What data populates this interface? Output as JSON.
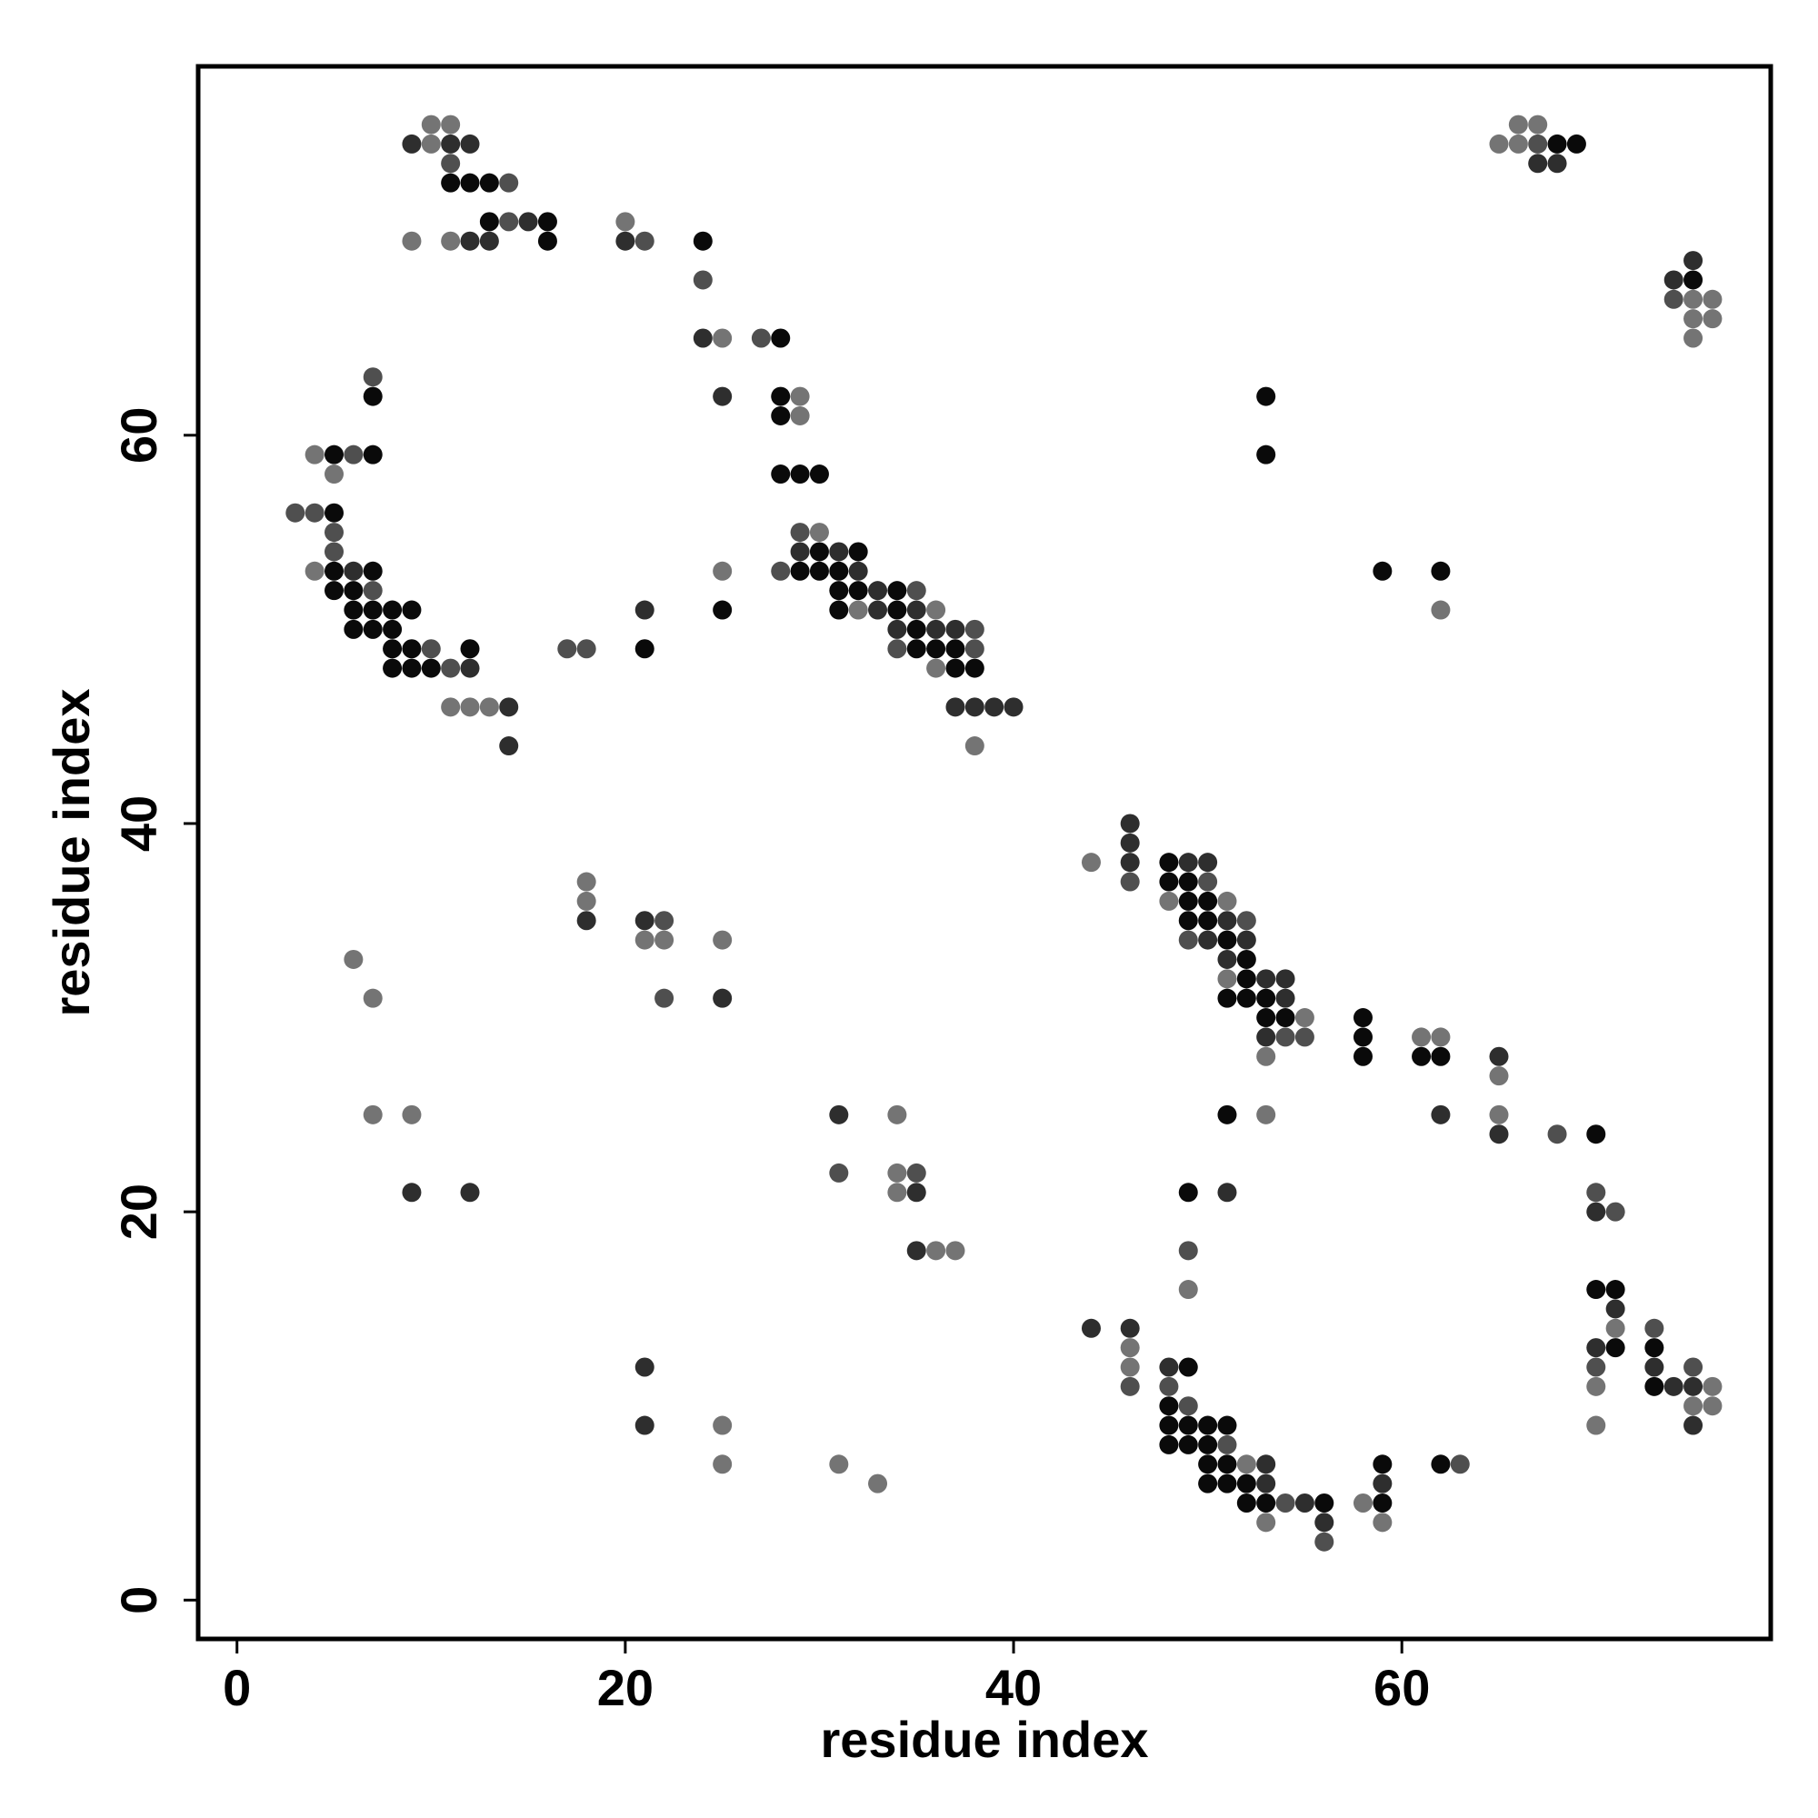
{
  "chart_data": {
    "type": "scatter",
    "title": "",
    "xlabel": "residue index",
    "ylabel": "residue index",
    "xlim": [
      -2,
      79
    ],
    "ylim": [
      -2,
      79
    ],
    "x_ticks": [
      0,
      20,
      40,
      60
    ],
    "y_ticks": [
      0,
      20,
      40,
      60
    ],
    "grid": false,
    "legend": "none",
    "shades": {
      "1": "#0a0a0a",
      "2": "#2e2e2e",
      "3": "#4f4f4f",
      "4": "#747474"
    },
    "points": [
      [
        3,
        56,
        3
      ],
      [
        4,
        56,
        3
      ],
      [
        4,
        59,
        4
      ],
      [
        4,
        53,
        4
      ],
      [
        5,
        59,
        1
      ],
      [
        5,
        58,
        4
      ],
      [
        5,
        56,
        1
      ],
      [
        5,
        55,
        3
      ],
      [
        5,
        54,
        3
      ],
      [
        5,
        53,
        1
      ],
      [
        5,
        52,
        1
      ],
      [
        6,
        59,
        3
      ],
      [
        6,
        53,
        2
      ],
      [
        6,
        52,
        1
      ],
      [
        6,
        51,
        1
      ],
      [
        6,
        50,
        1
      ],
      [
        6,
        33,
        4
      ],
      [
        7,
        63,
        3
      ],
      [
        7,
        62,
        1
      ],
      [
        7,
        59,
        1
      ],
      [
        7,
        53,
        1
      ],
      [
        7,
        52,
        3
      ],
      [
        7,
        51,
        1
      ],
      [
        7,
        50,
        1
      ],
      [
        7,
        31,
        4
      ],
      [
        7,
        25,
        4
      ],
      [
        8,
        51,
        1
      ],
      [
        8,
        50,
        1
      ],
      [
        8,
        49,
        1
      ],
      [
        8,
        48,
        1
      ],
      [
        9,
        75,
        2
      ],
      [
        9,
        70,
        4
      ],
      [
        9,
        51,
        1
      ],
      [
        9,
        49,
        1
      ],
      [
        9,
        48,
        1
      ],
      [
        9,
        25,
        4
      ],
      [
        9,
        21,
        2
      ],
      [
        10,
        76,
        4
      ],
      [
        10,
        75,
        4
      ],
      [
        10,
        49,
        3
      ],
      [
        10,
        48,
        1
      ],
      [
        11,
        76,
        4
      ],
      [
        11,
        75,
        2
      ],
      [
        11,
        74,
        3
      ],
      [
        11,
        73,
        1
      ],
      [
        11,
        70,
        4
      ],
      [
        11,
        48,
        3
      ],
      [
        11,
        46,
        4
      ],
      [
        12,
        75,
        2
      ],
      [
        12,
        73,
        1
      ],
      [
        12,
        70,
        2
      ],
      [
        12,
        49,
        1
      ],
      [
        12,
        48,
        2
      ],
      [
        12,
        46,
        4
      ],
      [
        12,
        21,
        2
      ],
      [
        13,
        73,
        1
      ],
      [
        13,
        71,
        1
      ],
      [
        13,
        70,
        2
      ],
      [
        13,
        46,
        4
      ],
      [
        14,
        73,
        3
      ],
      [
        14,
        71,
        3
      ],
      [
        14,
        46,
        2
      ],
      [
        14,
        44,
        2
      ],
      [
        15,
        71,
        2
      ],
      [
        16,
        71,
        1
      ],
      [
        16,
        70,
        1
      ],
      [
        17,
        49,
        3
      ],
      [
        18,
        49,
        3
      ],
      [
        18,
        37,
        4
      ],
      [
        18,
        36,
        4
      ],
      [
        18,
        35,
        2
      ],
      [
        20,
        71,
        4
      ],
      [
        20,
        70,
        2
      ],
      [
        21,
        70,
        3
      ],
      [
        21,
        51,
        2
      ],
      [
        21,
        49,
        1
      ],
      [
        21,
        35,
        2
      ],
      [
        21,
        34,
        4
      ],
      [
        21,
        12,
        2
      ],
      [
        21,
        9,
        2
      ],
      [
        22,
        35,
        3
      ],
      [
        22,
        34,
        4
      ],
      [
        22,
        31,
        3
      ],
      [
        24,
        70,
        1
      ],
      [
        24,
        68,
        3
      ],
      [
        24,
        65,
        2
      ],
      [
        25,
        65,
        4
      ],
      [
        25,
        62,
        2
      ],
      [
        25,
        53,
        4
      ],
      [
        25,
        51,
        1
      ],
      [
        25,
        34,
        4
      ],
      [
        25,
        31,
        2
      ],
      [
        25,
        9,
        4
      ],
      [
        25,
        7,
        4
      ],
      [
        27,
        65,
        3
      ],
      [
        28,
        65,
        1
      ],
      [
        28,
        62,
        1
      ],
      [
        28,
        61,
        1
      ],
      [
        28,
        58,
        1
      ],
      [
        28,
        53,
        3
      ],
      [
        29,
        62,
        4
      ],
      [
        29,
        61,
        4
      ],
      [
        29,
        58,
        1
      ],
      [
        29,
        55,
        3
      ],
      [
        29,
        54,
        2
      ],
      [
        29,
        53,
        1
      ],
      [
        30,
        58,
        1
      ],
      [
        30,
        55,
        4
      ],
      [
        30,
        54,
        1
      ],
      [
        30,
        53,
        1
      ],
      [
        31,
        54,
        2
      ],
      [
        31,
        53,
        1
      ],
      [
        31,
        52,
        1
      ],
      [
        31,
        51,
        1
      ],
      [
        31,
        25,
        2
      ],
      [
        31,
        22,
        3
      ],
      [
        31,
        7,
        4
      ],
      [
        32,
        54,
        1
      ],
      [
        32,
        53,
        2
      ],
      [
        32,
        52,
        1
      ],
      [
        32,
        51,
        4
      ],
      [
        33,
        52,
        2
      ],
      [
        33,
        51,
        2
      ],
      [
        33,
        6,
        4
      ],
      [
        34,
        52,
        1
      ],
      [
        34,
        51,
        1
      ],
      [
        34,
        50,
        2
      ],
      [
        34,
        49,
        3
      ],
      [
        34,
        25,
        4
      ],
      [
        34,
        22,
        4
      ],
      [
        34,
        21,
        4
      ],
      [
        35,
        52,
        3
      ],
      [
        35,
        51,
        2
      ],
      [
        35,
        50,
        1
      ],
      [
        35,
        49,
        1
      ],
      [
        35,
        22,
        3
      ],
      [
        35,
        21,
        2
      ],
      [
        35,
        18,
        2
      ],
      [
        36,
        51,
        4
      ],
      [
        36,
        50,
        2
      ],
      [
        36,
        49,
        1
      ],
      [
        36,
        48,
        4
      ],
      [
        36,
        18,
        4
      ],
      [
        37,
        50,
        2
      ],
      [
        37,
        49,
        1
      ],
      [
        37,
        48,
        1
      ],
      [
        37,
        46,
        2
      ],
      [
        37,
        18,
        4
      ],
      [
        38,
        50,
        3
      ],
      [
        38,
        49,
        3
      ],
      [
        38,
        48,
        1
      ],
      [
        38,
        46,
        2
      ],
      [
        38,
        44,
        4
      ],
      [
        39,
        46,
        2
      ],
      [
        40,
        46,
        2
      ],
      [
        44,
        38,
        4
      ],
      [
        44,
        14,
        2
      ],
      [
        46,
        40,
        2
      ],
      [
        46,
        39,
        2
      ],
      [
        46,
        38,
        2
      ],
      [
        46,
        37,
        3
      ],
      [
        46,
        14,
        2
      ],
      [
        46,
        13,
        4
      ],
      [
        46,
        12,
        4
      ],
      [
        46,
        11,
        3
      ],
      [
        48,
        38,
        1
      ],
      [
        48,
        37,
        1
      ],
      [
        48,
        36,
        4
      ],
      [
        48,
        12,
        2
      ],
      [
        48,
        11,
        3
      ],
      [
        48,
        10,
        1
      ],
      [
        48,
        9,
        1
      ],
      [
        48,
        8,
        1
      ],
      [
        49,
        38,
        2
      ],
      [
        49,
        37,
        1
      ],
      [
        49,
        36,
        1
      ],
      [
        49,
        35,
        1
      ],
      [
        49,
        34,
        3
      ],
      [
        49,
        21,
        1
      ],
      [
        49,
        18,
        3
      ],
      [
        49,
        16,
        4
      ],
      [
        49,
        12,
        1
      ],
      [
        49,
        10,
        3
      ],
      [
        49,
        9,
        1
      ],
      [
        49,
        8,
        1
      ],
      [
        50,
        38,
        2
      ],
      [
        50,
        37,
        3
      ],
      [
        50,
        36,
        1
      ],
      [
        50,
        35,
        1
      ],
      [
        50,
        34,
        2
      ],
      [
        50,
        9,
        1
      ],
      [
        50,
        8,
        1
      ],
      [
        50,
        7,
        1
      ],
      [
        50,
        6,
        1
      ],
      [
        51,
        36,
        4
      ],
      [
        51,
        35,
        2
      ],
      [
        51,
        34,
        1
      ],
      [
        51,
        33,
        2
      ],
      [
        51,
        32,
        4
      ],
      [
        51,
        31,
        1
      ],
      [
        51,
        25,
        1
      ],
      [
        51,
        21,
        2
      ],
      [
        51,
        9,
        1
      ],
      [
        51,
        8,
        3
      ],
      [
        51,
        7,
        1
      ],
      [
        51,
        6,
        1
      ],
      [
        52,
        35,
        3
      ],
      [
        52,
        34,
        2
      ],
      [
        52,
        33,
        1
      ],
      [
        52,
        32,
        1
      ],
      [
        52,
        31,
        1
      ],
      [
        52,
        7,
        4
      ],
      [
        52,
        6,
        1
      ],
      [
        52,
        5,
        1
      ],
      [
        53,
        62,
        1
      ],
      [
        53,
        59,
        1
      ],
      [
        53,
        32,
        2
      ],
      [
        53,
        31,
        1
      ],
      [
        53,
        30,
        1
      ],
      [
        53,
        29,
        2
      ],
      [
        53,
        28,
        4
      ],
      [
        53,
        25,
        4
      ],
      [
        53,
        7,
        2
      ],
      [
        53,
        6,
        2
      ],
      [
        53,
        5,
        1
      ],
      [
        53,
        4,
        4
      ],
      [
        54,
        32,
        2
      ],
      [
        54,
        31,
        2
      ],
      [
        54,
        30,
        1
      ],
      [
        54,
        29,
        3
      ],
      [
        54,
        5,
        3
      ],
      [
        55,
        30,
        4
      ],
      [
        55,
        29,
        3
      ],
      [
        55,
        5,
        2
      ],
      [
        56,
        5,
        1
      ],
      [
        56,
        4,
        2
      ],
      [
        56,
        3,
        3
      ],
      [
        58,
        30,
        1
      ],
      [
        58,
        29,
        1
      ],
      [
        58,
        28,
        1
      ],
      [
        58,
        5,
        4
      ],
      [
        59,
        53,
        1
      ],
      [
        59,
        7,
        1
      ],
      [
        59,
        6,
        2
      ],
      [
        59,
        5,
        1
      ],
      [
        59,
        4,
        4
      ],
      [
        61,
        29,
        4
      ],
      [
        61,
        28,
        1
      ],
      [
        62,
        53,
        1
      ],
      [
        62,
        51,
        4
      ],
      [
        62,
        29,
        4
      ],
      [
        62,
        28,
        1
      ],
      [
        62,
        25,
        2
      ],
      [
        62,
        7,
        1
      ],
      [
        63,
        7,
        3
      ],
      [
        65,
        75,
        4
      ],
      [
        65,
        28,
        2
      ],
      [
        65,
        27,
        4
      ],
      [
        65,
        25,
        4
      ],
      [
        65,
        24,
        2
      ],
      [
        66,
        76,
        4
      ],
      [
        66,
        75,
        4
      ],
      [
        67,
        76,
        4
      ],
      [
        67,
        75,
        3
      ],
      [
        67,
        74,
        2
      ],
      [
        68,
        75,
        1
      ],
      [
        68,
        74,
        2
      ],
      [
        68,
        24,
        3
      ],
      [
        69,
        75,
        1
      ],
      [
        70,
        24,
        1
      ],
      [
        70,
        21,
        3
      ],
      [
        70,
        20,
        2
      ],
      [
        70,
        16,
        1
      ],
      [
        70,
        13,
        2
      ],
      [
        70,
        12,
        3
      ],
      [
        70,
        11,
        4
      ],
      [
        70,
        9,
        4
      ],
      [
        71,
        20,
        3
      ],
      [
        71,
        16,
        1
      ],
      [
        71,
        15,
        2
      ],
      [
        71,
        14,
        4
      ],
      [
        71,
        13,
        1
      ],
      [
        73,
        14,
        3
      ],
      [
        73,
        13,
        1
      ],
      [
        73,
        12,
        2
      ],
      [
        73,
        11,
        1
      ],
      [
        74,
        68,
        2
      ],
      [
        74,
        67,
        3
      ],
      [
        74,
        11,
        2
      ],
      [
        75,
        69,
        2
      ],
      [
        75,
        68,
        1
      ],
      [
        75,
        67,
        4
      ],
      [
        75,
        66,
        4
      ],
      [
        75,
        65,
        4
      ],
      [
        75,
        12,
        3
      ],
      [
        75,
        11,
        2
      ],
      [
        75,
        10,
        4
      ],
      [
        75,
        9,
        2
      ],
      [
        76,
        67,
        4
      ],
      [
        76,
        66,
        4
      ],
      [
        76,
        11,
        4
      ],
      [
        76,
        10,
        4
      ]
    ]
  }
}
